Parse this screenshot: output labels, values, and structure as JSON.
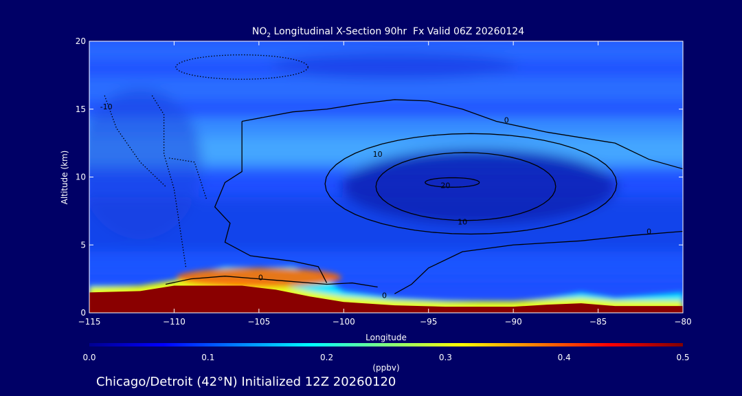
{
  "chart_data": {
    "type": "heatmap",
    "title": {
      "prefix": "NO",
      "subscript": "2",
      "rest": " Longitudinal X-Section 90hr  Fx Valid 06Z 20260124"
    },
    "xlabel": "Longitude",
    "ylabel": "Altitude (km)",
    "xlim": [
      -115,
      -80
    ],
    "ylim": [
      0,
      20
    ],
    "x_ticks": [
      -115,
      -110,
      -105,
      -100,
      -95,
      -90,
      -85,
      -80
    ],
    "x_tick_labels": [
      "−115",
      "−110",
      "−105",
      "−100",
      "−95",
      "−90",
      "−85",
      "−80"
    ],
    "y_ticks": [
      0,
      5,
      10,
      15,
      20
    ],
    "y_tick_labels": [
      "0",
      "5",
      "10",
      "15",
      "20"
    ],
    "colorbar": {
      "label": "(ppbv)",
      "min": 0.0,
      "max": 0.5,
      "tick_values": [
        0.0,
        0.1,
        0.2,
        0.3,
        0.4,
        0.5
      ],
      "tick_labels": [
        "0.0",
        "0.1",
        "0.2",
        "0.3",
        "0.4",
        "0.5"
      ],
      "colormap": [
        "#00008f",
        "#0000ff",
        "#0080ff",
        "#00ffff",
        "#80ff80",
        "#ffff00",
        "#ff8000",
        "#ff0000",
        "#800000"
      ]
    },
    "terrain": [
      [
        -115,
        1.5
      ],
      [
        -112,
        1.6
      ],
      [
        -110,
        2.0
      ],
      [
        -106,
        2.0
      ],
      [
        -104,
        1.7
      ],
      [
        -102,
        1.2
      ],
      [
        -100,
        0.8
      ],
      [
        -97,
        0.55
      ],
      [
        -94,
        0.45
      ],
      [
        -90,
        0.45
      ],
      [
        -88,
        0.6
      ],
      [
        -86,
        0.7
      ],
      [
        -84,
        0.5
      ],
      [
        -82,
        0.5
      ],
      [
        -80,
        0.5
      ]
    ],
    "surface_layer": [
      [
        -115,
        2.0
      ],
      [
        -112,
        2.0
      ],
      [
        -110,
        2.3
      ],
      [
        -108.5,
        3.0
      ],
      [
        -107,
        3.4
      ],
      [
        -105,
        3.3
      ],
      [
        -103,
        3.4
      ],
      [
        -101.5,
        2.8
      ],
      [
        -100,
        1.6
      ],
      [
        -97,
        1.1
      ],
      [
        -94,
        0.9
      ],
      [
        -90,
        0.8
      ],
      [
        -88,
        1.1
      ],
      [
        -86,
        1.5
      ],
      [
        -84,
        1.1
      ],
      [
        -82,
        1.3
      ],
      [
        -80,
        1.5
      ]
    ],
    "contour_labels": [
      {
        "text": "0",
        "x": -90.4,
        "y": 14.0
      },
      {
        "text": "10",
        "x": -98.0,
        "y": 11.5
      },
      {
        "text": "20",
        "x": -94.0,
        "y": 9.2
      },
      {
        "text": "10",
        "x": -93.0,
        "y": 6.5
      },
      {
        "text": "0",
        "x": -82.0,
        "y": 5.8
      },
      {
        "text": "0",
        "x": -104.9,
        "y": 2.4
      },
      {
        "text": "0",
        "x": -97.6,
        "y": 1.1
      },
      {
        "text": "-10",
        "x": -114.0,
        "y": 15.0
      }
    ]
  },
  "footer": "Chicago/Detroit (42°N) Initialized 12Z 20260120"
}
